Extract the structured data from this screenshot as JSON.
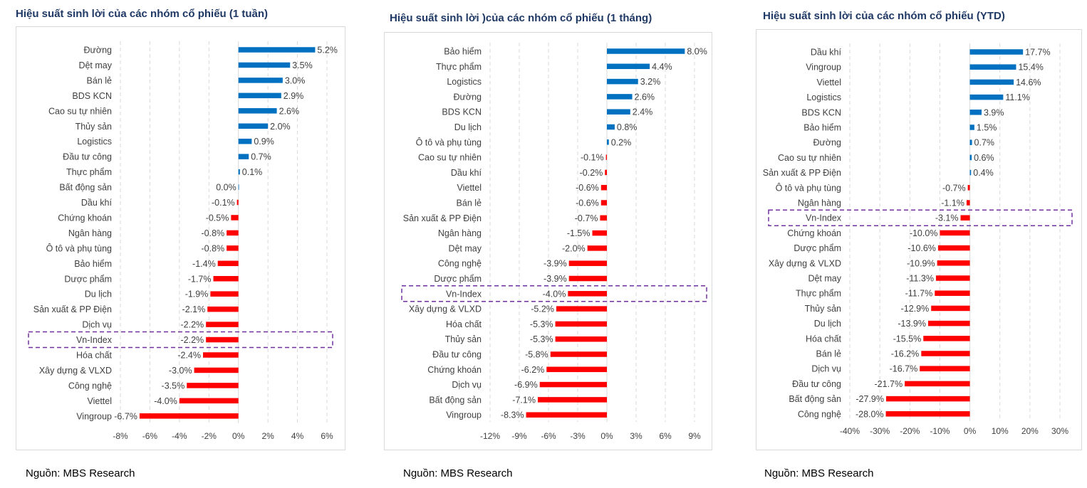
{
  "chart_data": [
    {
      "type": "bar",
      "orientation": "horizontal",
      "title": "Hiệu suất sinh lời của các nhóm cổ phiếu (1 tuần)",
      "categories": [
        "Đường",
        "Dệt may",
        "Bán lẻ",
        "BDS KCN",
        "Cao su tự nhiên",
        "Thủy sản",
        "Logistics",
        "Đầu tư công",
        "Thực phẩm",
        "Bất động sản",
        "Dầu khí",
        "Chứng khoán",
        "Ngân hàng",
        "Ô tô và phụ tùng",
        "Bảo hiểm",
        "Dược phẩm",
        "Du lịch",
        "Sản xuất & PP Điện",
        "Dịch vụ",
        "Vn-Index",
        "Hóa chất",
        "Xây dựng & VLXD",
        "Công nghệ",
        "Viettel",
        "Vingroup"
      ],
      "values": [
        5.2,
        3.5,
        3.0,
        2.9,
        2.6,
        2.0,
        0.9,
        0.7,
        0.1,
        0.0,
        -0.1,
        -0.5,
        -0.8,
        -0.8,
        -1.4,
        -1.7,
        -1.9,
        -2.1,
        -2.2,
        -2.2,
        -2.4,
        -3.0,
        -3.5,
        -4.0,
        -6.7
      ],
      "value_labels": [
        "5.2%",
        "3.5%",
        "3.0%",
        "2.9%",
        "2.6%",
        "2.0%",
        "0.9%",
        "0.7%",
        "0.1%",
        "0.0%",
        "-0.1%",
        "-0.5%",
        "-0.8%",
        "-0.8%",
        "-1.4%",
        "-1.7%",
        "-1.9%",
        "-2.1%",
        "-2.2%",
        "-2.2%",
        "-2.4%",
        "-3.0%",
        "-3.5%",
        "-4.0%",
        "-6.7%"
      ],
      "xlim": [
        -8,
        6
      ],
      "xticks": [
        -8,
        -6,
        -4,
        -2,
        0,
        2,
        4,
        6
      ],
      "xtick_labels": [
        "-8%",
        "-6%",
        "-4%",
        "-2%",
        "0%",
        "2%",
        "4%",
        "6%"
      ],
      "highlight": "Vn-Index",
      "grid": "vertical dashed",
      "positive_color": "#0070c0",
      "negative_color": "#ff0000",
      "highlight_color": "#7030a0",
      "source": "Nguồn: MBS Research"
    },
    {
      "type": "bar",
      "orientation": "horizontal",
      "title": "Hiệu suất sinh lời )của các nhóm cổ phiếu (1 tháng)",
      "categories": [
        "Bảo hiểm",
        "Thực phẩm",
        "Logistics",
        "Đường",
        "BDS KCN",
        "Du lịch",
        "Ô tô và phụ tùng",
        "Cao su tự nhiên",
        "Dầu khí",
        "Viettel",
        "Bán lẻ",
        "Sản xuất & PP Điện",
        "Ngân hàng",
        "Dệt may",
        "Công nghệ",
        "Dược phẩm",
        "Vn-Index",
        "Xây dựng & VLXD",
        "Hóa chất",
        "Thủy sản",
        "Đầu tư công",
        "Chứng khoán",
        "Dịch vụ",
        "Bất động sản",
        "Vingroup"
      ],
      "values": [
        8.0,
        4.4,
        3.2,
        2.6,
        2.4,
        0.8,
        0.2,
        -0.1,
        -0.2,
        -0.6,
        -0.6,
        -0.7,
        -1.5,
        -2.0,
        -3.9,
        -3.9,
        -4.0,
        -5.2,
        -5.3,
        -5.3,
        -5.8,
        -6.2,
        -6.9,
        -7.1,
        -8.3
      ],
      "value_labels": [
        "8.0%",
        "4.4%",
        "3.2%",
        "2.6%",
        "2.4%",
        "0.8%",
        "0.2%",
        "-0.1%",
        "-0.2%",
        "-0.6%",
        "-0.6%",
        "-0.7%",
        "-1.5%",
        "-2.0%",
        "-3.9%",
        "-3.9%",
        "-4.0%",
        "-5.2%",
        "-5.3%",
        "-5.3%",
        "-5.8%",
        "-6.2%",
        "-6.9%",
        "-7.1%",
        "-8.3%"
      ],
      "xlim": [
        -12,
        9
      ],
      "xticks": [
        -12,
        -9,
        -6,
        -3,
        0,
        3,
        6,
        9
      ],
      "xtick_labels": [
        "-12%",
        "-9%",
        "-6%",
        "-3%",
        "0%",
        "3%",
        "6%",
        "9%"
      ],
      "highlight": "Vn-Index",
      "grid": "vertical dashed",
      "positive_color": "#0070c0",
      "negative_color": "#ff0000",
      "highlight_color": "#7030a0",
      "source": "Nguồn: MBS Research"
    },
    {
      "type": "bar",
      "orientation": "horizontal",
      "title": "Hiệu suất sinh lời của các nhóm cổ phiếu (YTD)",
      "categories": [
        "Dầu khí",
        "Vingroup",
        "Viettel",
        "Logistics",
        "BDS KCN",
        "Bảo hiểm",
        "Đường",
        "Cao su tự nhiên",
        "Sản xuất & PP Điện",
        "Ô tô và phụ tùng",
        "Ngân hàng",
        "Vn-Index",
        "Chứng khoán",
        "Dược phẩm",
        "Xây dựng & VLXD",
        "Dệt may",
        "Thực phẩm",
        "Thủy sản",
        "Du lịch",
        "Hóa chất",
        "Bán lẻ",
        "Dịch vụ",
        "Đầu tư công",
        "Bất động sản",
        "Công nghệ"
      ],
      "values": [
        17.7,
        15.4,
        14.6,
        11.1,
        3.9,
        1.5,
        0.7,
        0.6,
        0.4,
        -0.7,
        -1.1,
        -3.1,
        -10.0,
        -10.6,
        -10.9,
        -11.3,
        -11.7,
        -12.9,
        -13.9,
        -15.5,
        -16.2,
        -16.7,
        -21.7,
        -27.9,
        -28.0
      ],
      "value_labels": [
        "17.7%",
        "15.4%",
        "14.6%",
        "11.1%",
        "3.9%",
        "1.5%",
        "0.7%",
        "0.6%",
        "0.4%",
        "-0.7%",
        "-1.1%",
        "-3.1%",
        "-10.0%",
        "-10.6%",
        "-10.9%",
        "-11.3%",
        "-11.7%",
        "-12.9%",
        "-13.9%",
        "-15.5%",
        "-16.2%",
        "-16.7%",
        "-21.7%",
        "-27.9%",
        "-28.0%"
      ],
      "xlim": [
        -40,
        30
      ],
      "xticks": [
        -40,
        -30,
        -20,
        -10,
        0,
        10,
        20,
        30
      ],
      "xtick_labels": [
        "-40%",
        "-30%",
        "-20%",
        "-10%",
        "0%",
        "10%",
        "20%",
        "30%"
      ],
      "highlight": "Vn-Index",
      "grid": "vertical dashed",
      "positive_color": "#0070c0",
      "negative_color": "#ff0000",
      "highlight_color": "#7030a0",
      "source": "Nguồn: MBS Research"
    }
  ]
}
